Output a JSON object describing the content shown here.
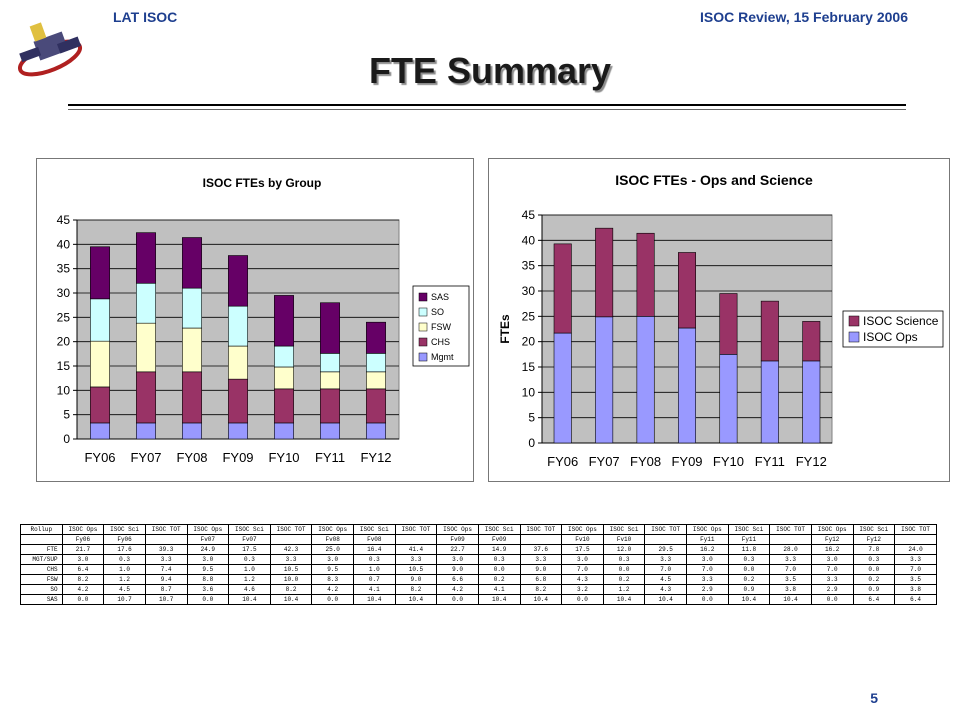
{
  "header": {
    "left": "LAT ISOC",
    "right": "ISOC Review, 15 February 2006"
  },
  "title": "FTE Summary",
  "page_number": "5",
  "colors": {
    "SAS": "#660066",
    "SO": "#ccffff",
    "FSW": "#ffffcc",
    "CHS": "#993366",
    "Mgmt": "#9999ff",
    "ISOC Science": "#993366",
    "ISOC Ops": "#9999ff",
    "plot_bg": "#c0c0c0",
    "header_text": "#1e3f8f"
  },
  "chart_data": [
    {
      "type": "bar",
      "stacked": true,
      "title": "ISOC FTEs by Group",
      "xlabel": "",
      "ylabel": "",
      "categories": [
        "FY06",
        "FY07",
        "FY08",
        "FY09",
        "FY10",
        "FY11",
        "FY12"
      ],
      "ylim": [
        0,
        45
      ],
      "yticks": [
        0,
        5,
        10,
        15,
        20,
        25,
        30,
        35,
        40,
        45
      ],
      "grid": true,
      "legend_position": "right",
      "series": [
        {
          "name": "Mgmt",
          "values": [
            3.3,
            3.3,
            3.3,
            3.3,
            3.3,
            3.3,
            3.3
          ]
        },
        {
          "name": "CHS",
          "values": [
            7.4,
            10.5,
            10.5,
            9.0,
            7.0,
            7.0,
            7.0
          ]
        },
        {
          "name": "FSW",
          "values": [
            9.4,
            10.0,
            9.0,
            6.8,
            4.5,
            3.5,
            3.5
          ]
        },
        {
          "name": "SO",
          "values": [
            8.7,
            8.2,
            8.2,
            8.2,
            4.3,
            3.8,
            3.8
          ]
        },
        {
          "name": "SAS",
          "values": [
            10.7,
            10.4,
            10.4,
            10.4,
            10.4,
            10.4,
            6.4
          ]
        }
      ],
      "legend_order": [
        "SAS",
        "SO",
        "FSW",
        "CHS",
        "Mgmt"
      ]
    },
    {
      "type": "bar",
      "stacked": true,
      "title": "ISOC FTEs - Ops and Science",
      "xlabel": "",
      "ylabel": "FTEs",
      "categories": [
        "FY06",
        "FY07",
        "FY08",
        "FY09",
        "FY10",
        "FY11",
        "FY12"
      ],
      "ylim": [
        0,
        45
      ],
      "yticks": [
        0,
        5,
        10,
        15,
        20,
        25,
        30,
        35,
        40,
        45
      ],
      "grid": true,
      "legend_position": "right",
      "series": [
        {
          "name": "ISOC Ops",
          "values": [
            21.7,
            24.9,
            25.0,
            22.7,
            17.5,
            16.2,
            16.2
          ]
        },
        {
          "name": "ISOC Science",
          "values": [
            17.6,
            17.5,
            16.4,
            14.9,
            12.0,
            11.8,
            7.8
          ]
        }
      ],
      "legend_order": [
        "ISOC Science",
        "ISOC Ops"
      ]
    }
  ],
  "table": {
    "header_row": [
      "Rollup",
      "ISOC Ops",
      "ISOC Sci",
      "ISOC TOT",
      "ISOC Ops",
      "ISOC Sci",
      "ISOC TOT",
      "ISOC Ops",
      "ISOC Sci",
      "ISOC TOT",
      "ISOC Ops",
      "ISOC Sci",
      "ISOC TOT",
      "ISOC Ops",
      "ISOC Sci",
      "ISOC TOT",
      "ISOC Ops",
      "ISOC Sci",
      "ISOC TOT",
      "ISOC Ops",
      "ISOC Sci",
      "ISOC TOT"
    ],
    "year_row": [
      "",
      "Fy06",
      "Fy06",
      "",
      "Fv07",
      "Fv07",
      "",
      "Fv08",
      "Fv08",
      "",
      "Fv09",
      "Fv09",
      "",
      "Fv10",
      "Fv10",
      "",
      "Fy11",
      "Fy11",
      "",
      "Fy12",
      "Fy12",
      ""
    ],
    "rows": [
      [
        "FTE",
        "21.7",
        "17.6",
        "39.3",
        "24.9",
        "17.5",
        "42.3",
        "25.0",
        "16.4",
        "41.4",
        "22.7",
        "14.9",
        "37.6",
        "17.5",
        "12.0",
        "29.5",
        "16.2",
        "11.8",
        "28.0",
        "16.2",
        "7.8",
        "24.0"
      ],
      [
        "MGT/SUP",
        "3.0",
        "0.3",
        "3.3",
        "3.0",
        "0.3",
        "3.3",
        "3.0",
        "0.3",
        "3.3",
        "3.0",
        "0.3",
        "3.3",
        "3.0",
        "0.3",
        "3.3",
        "3.0",
        "0.3",
        "3.3",
        "3.0",
        "0.3",
        "3.3"
      ],
      [
        "CHS",
        "6.4",
        "1.0",
        "7.4",
        "9.5",
        "1.0",
        "10.5",
        "9.5",
        "1.0",
        "10.5",
        "9.0",
        "0.0",
        "9.0",
        "7.0",
        "0.0",
        "7.0",
        "7.0",
        "0.0",
        "7.0",
        "7.0",
        "0.0",
        "7.0"
      ],
      [
        "FSW",
        "8.2",
        "1.2",
        "9.4",
        "8.8",
        "1.2",
        "10.0",
        "8.3",
        "0.7",
        "9.0",
        "6.6",
        "0.2",
        "6.8",
        "4.3",
        "0.2",
        "4.5",
        "3.3",
        "0.2",
        "3.5",
        "3.3",
        "0.2",
        "3.5"
      ],
      [
        "SO",
        "4.2",
        "4.5",
        "8.7",
        "3.6",
        "4.6",
        "8.2",
        "4.2",
        "4.1",
        "8.2",
        "4.2",
        "4.1",
        "8.2",
        "3.2",
        "1.2",
        "4.3",
        "2.9",
        "0.9",
        "3.8",
        "2.9",
        "0.9",
        "3.8"
      ],
      [
        "SAS",
        "0.0",
        "10.7",
        "10.7",
        "0.0",
        "10.4",
        "10.4",
        "0.0",
        "10.4",
        "10.4",
        "0.0",
        "10.4",
        "10.4",
        "0.0",
        "10.4",
        "10.4",
        "0.0",
        "10.4",
        "10.4",
        "0.0",
        "6.4",
        "6.4"
      ]
    ]
  }
}
